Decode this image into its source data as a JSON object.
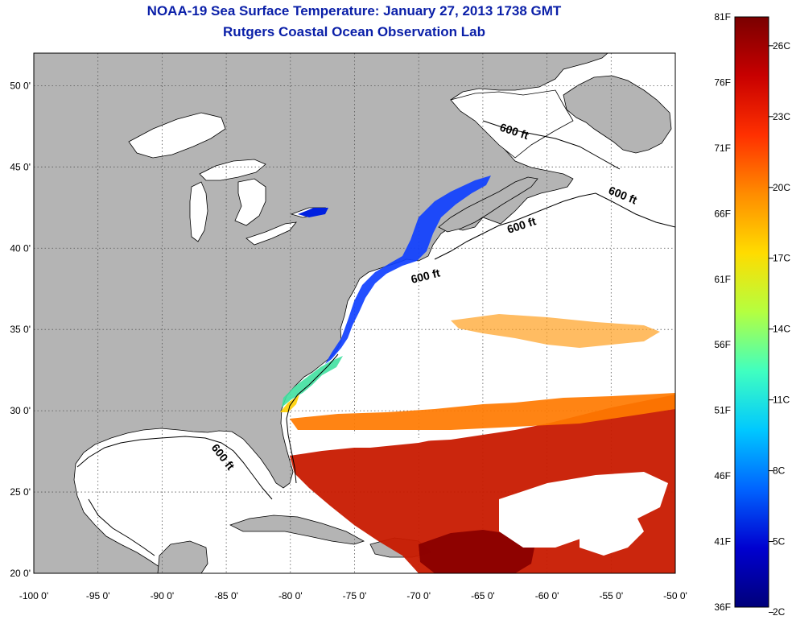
{
  "header": {
    "title": "NOAA-19 Sea Surface Temperature:  January 27, 2013 1738 GMT",
    "subtitle": "Rutgers Coastal Ocean Observation Lab"
  },
  "map": {
    "lon_range": [
      -100,
      -50
    ],
    "lat_range": [
      20,
      52
    ],
    "lon_ticks": [
      "-100 0'",
      "-95 0'",
      "-90 0'",
      "-85 0'",
      "-80 0'",
      "-75 0'",
      "-70 0'",
      "-65 0'",
      "-60 0'",
      "-55 0'",
      "-50 0'"
    ],
    "lat_ticks": [
      "20 0'",
      "25 0'",
      "30 0'",
      "35 0'",
      "40 0'",
      "45 0'",
      "50 0'"
    ],
    "grid": "dotted",
    "land_color": "#b4b4b4",
    "water_no_data_color": "#ffffff",
    "depth_contours": [
      {
        "label": "600 ft"
      },
      {
        "label": "600 ft"
      },
      {
        "label": "600 ft"
      },
      {
        "label": "600 ft"
      },
      {
        "label": "600 ft"
      }
    ]
  },
  "colorbar": {
    "fahrenheit_labels": [
      "81F",
      "76F",
      "71F",
      "66F",
      "61F",
      "56F",
      "51F",
      "46F",
      "41F",
      "36F"
    ],
    "celsius_labels": [
      "26C",
      "23C",
      "20C",
      "17C",
      "14C",
      "11C",
      "8C",
      "5C",
      "2C"
    ],
    "colors": [
      "#7a0000",
      "#c80000",
      "#ff3000",
      "#ff8c00",
      "#ffdc00",
      "#b4ff40",
      "#40ffc0",
      "#00c8ff",
      "#0064ff",
      "#0000d0",
      "#00007a"
    ]
  }
}
